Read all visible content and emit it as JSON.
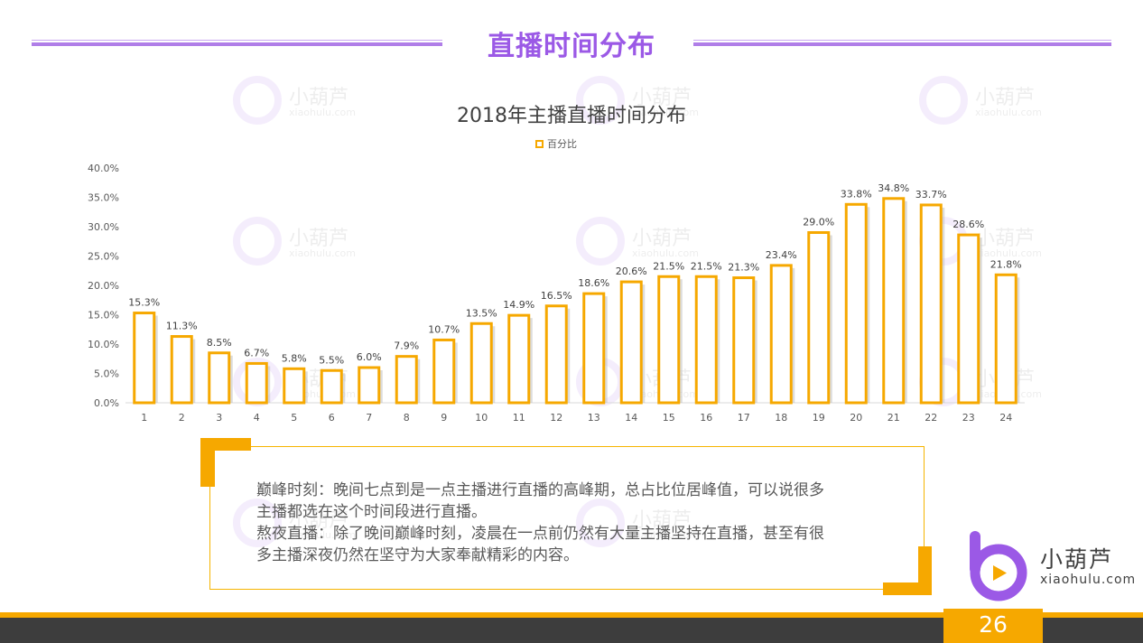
{
  "slide": {
    "title": "直播时间分布",
    "page_number": "26",
    "accent_color": "#9b59e6",
    "highlight_color": "#f6a800"
  },
  "chart_title": "2018年主播直播时间分布",
  "legend_label": "百分比",
  "chart_data": {
    "type": "bar",
    "title": "2018年主播直播时间分布",
    "series": [
      {
        "name": "百分比",
        "values": [
          15.3,
          11.3,
          8.5,
          6.7,
          5.8,
          5.5,
          6.0,
          7.9,
          10.7,
          13.5,
          14.9,
          16.5,
          18.6,
          20.6,
          21.5,
          21.5,
          21.3,
          23.4,
          29.0,
          33.8,
          34.8,
          33.7,
          28.6,
          21.8
        ]
      }
    ],
    "categories": [
      "1",
      "2",
      "3",
      "4",
      "5",
      "6",
      "7",
      "8",
      "9",
      "10",
      "11",
      "12",
      "13",
      "14",
      "15",
      "16",
      "17",
      "18",
      "19",
      "20",
      "21",
      "22",
      "23",
      "24"
    ],
    "data_labels": [
      "15.3%",
      "11.3%",
      "8.5%",
      "6.7%",
      "5.8%",
      "5.5%",
      "6.0%",
      "7.9%",
      "10.7%",
      "13.5%",
      "14.9%",
      "16.5%",
      "18.6%",
      "20.6%",
      "21.5%",
      "21.5%",
      "21.3%",
      "23.4%",
      "29.0%",
      "33.8%",
      "34.8%",
      "33.7%",
      "28.6%",
      "21.8%"
    ],
    "y_ticks": [
      "0.0%",
      "5.0%",
      "10.0%",
      "15.0%",
      "20.0%",
      "25.0%",
      "30.0%",
      "35.0%",
      "40.0%"
    ],
    "ylim": [
      0,
      40
    ],
    "grid": false,
    "legend_position": "top"
  },
  "description": {
    "line1": "巅峰时刻：晚间七点到是一点主播进行直播的高峰期，总占比位居峰值，可以说很多",
    "line2": "主播都选在这个时间段进行直播。",
    "line3": "熬夜直播：除了晚间巅峰时刻，凌晨在一点前仍然有大量主播坚持在直播，甚至有很",
    "line4": "多主播深夜仍然在坚守为大家奉献精彩的内容。"
  },
  "logo": {
    "name": "小葫芦",
    "url": "xiaohulu.com"
  }
}
